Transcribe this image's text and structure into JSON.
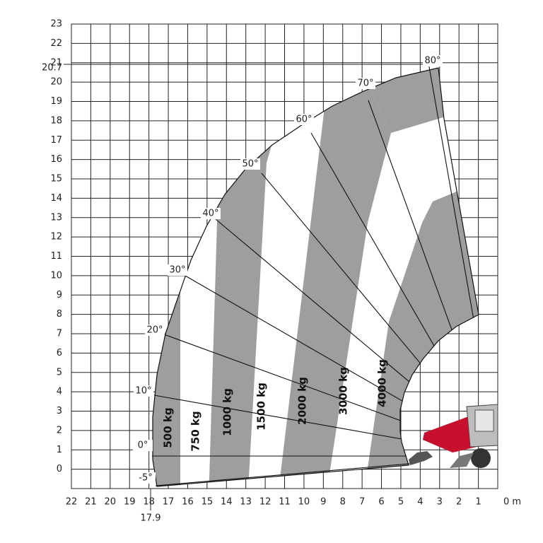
{
  "y_axis": {
    "labels": [
      "23",
      "22",
      "21",
      "20",
      "19",
      "18",
      "17",
      "16",
      "15",
      "14",
      "13",
      "12",
      "11",
      "10",
      "9",
      "8",
      "7",
      "6",
      "5",
      "4",
      "3",
      "2",
      "1",
      "0"
    ]
  },
  "x_axis": {
    "labels": [
      "22",
      "21",
      "20",
      "19",
      "18",
      "17",
      "16",
      "15",
      "14",
      "13",
      "12",
      "11",
      "10",
      "9",
      "8",
      "7",
      "6",
      "5",
      "4",
      "3",
      "2",
      "1",
      "0 m"
    ]
  },
  "markers": {
    "height": "20.7",
    "reach": "17.9"
  },
  "angles": [
    "-5°",
    "0°",
    "10°",
    "20°",
    "30°",
    "40°",
    "50°",
    "60°",
    "70°",
    "80°"
  ],
  "zones": [
    "500 kg",
    "750 kg",
    "1000 kg",
    "1500 kg",
    "2000 kg",
    "3000 kg",
    "4000 kg"
  ]
}
